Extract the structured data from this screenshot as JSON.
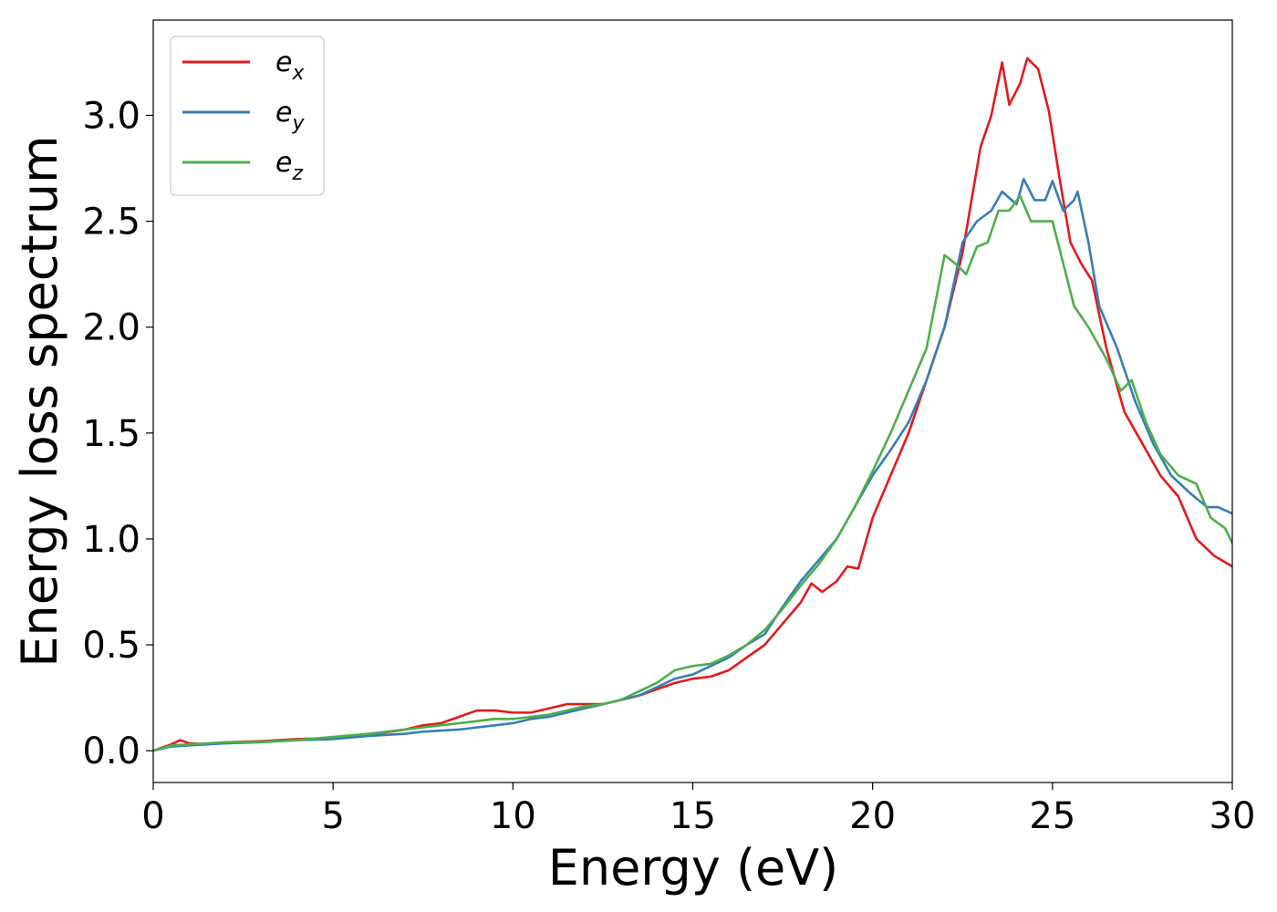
{
  "chart_data": {
    "type": "line",
    "title": "",
    "xlabel": "Energy (eV)",
    "ylabel": "Energy loss spectrum",
    "xlim": [
      0,
      30
    ],
    "ylim": [
      -0.15,
      3.45
    ],
    "xticks": [
      0,
      5,
      10,
      15,
      20,
      25,
      30
    ],
    "xtick_labels": [
      "0",
      "5",
      "10",
      "15",
      "20",
      "25",
      "30"
    ],
    "yticks": [
      0.0,
      0.5,
      1.0,
      1.5,
      2.0,
      2.5,
      3.0
    ],
    "ytick_labels": [
      "0.0",
      "0.5",
      "1.0",
      "1.5",
      "2.0",
      "2.5",
      "3.0"
    ],
    "grid": false,
    "legend_position": "top-left",
    "series": [
      {
        "name": "e_x",
        "label_base": "e",
        "label_sub": "x",
        "color": "#e41a1c",
        "points": [
          [
            0,
            0.0
          ],
          [
            0.5,
            0.03
          ],
          [
            0.75,
            0.05
          ],
          [
            1,
            0.035
          ],
          [
            1.5,
            0.03
          ],
          [
            2,
            0.04
          ],
          [
            3,
            0.045
          ],
          [
            4,
            0.055
          ],
          [
            5,
            0.06
          ],
          [
            6,
            0.075
          ],
          [
            7,
            0.1
          ],
          [
            7.5,
            0.12
          ],
          [
            8,
            0.13
          ],
          [
            8.5,
            0.16
          ],
          [
            9,
            0.19
          ],
          [
            9.5,
            0.19
          ],
          [
            10,
            0.18
          ],
          [
            10.5,
            0.18
          ],
          [
            11,
            0.2
          ],
          [
            11.5,
            0.22
          ],
          [
            12,
            0.22
          ],
          [
            12.5,
            0.22
          ],
          [
            13,
            0.24
          ],
          [
            13.5,
            0.26
          ],
          [
            14,
            0.29
          ],
          [
            14.5,
            0.32
          ],
          [
            15,
            0.34
          ],
          [
            15.5,
            0.35
          ],
          [
            16,
            0.38
          ],
          [
            16.5,
            0.44
          ],
          [
            17,
            0.5
          ],
          [
            17.5,
            0.6
          ],
          [
            18,
            0.7
          ],
          [
            18.3,
            0.79
          ],
          [
            18.6,
            0.75
          ],
          [
            19,
            0.8
          ],
          [
            19.3,
            0.87
          ],
          [
            19.6,
            0.86
          ],
          [
            20,
            1.1
          ],
          [
            20.5,
            1.3
          ],
          [
            21,
            1.5
          ],
          [
            21.5,
            1.75
          ],
          [
            22,
            2.0
          ],
          [
            22.5,
            2.35
          ],
          [
            22.8,
            2.65
          ],
          [
            23,
            2.85
          ],
          [
            23.3,
            3.0
          ],
          [
            23.6,
            3.25
          ],
          [
            23.8,
            3.05
          ],
          [
            24.1,
            3.15
          ],
          [
            24.3,
            3.27
          ],
          [
            24.6,
            3.22
          ],
          [
            24.9,
            3.02
          ],
          [
            25.2,
            2.7
          ],
          [
            25.5,
            2.4
          ],
          [
            25.8,
            2.3
          ],
          [
            26.1,
            2.22
          ],
          [
            26.5,
            1.9
          ],
          [
            27,
            1.6
          ],
          [
            27.5,
            1.45
          ],
          [
            28,
            1.3
          ],
          [
            28.5,
            1.2
          ],
          [
            29,
            1.0
          ],
          [
            29.5,
            0.92
          ],
          [
            30,
            0.87
          ]
        ]
      },
      {
        "name": "e_y",
        "label_base": "e",
        "label_sub": "y",
        "color": "#377eb8",
        "points": [
          [
            0,
            0.0
          ],
          [
            0.5,
            0.02
          ],
          [
            1,
            0.025
          ],
          [
            1.5,
            0.03
          ],
          [
            2,
            0.035
          ],
          [
            3,
            0.04
          ],
          [
            4,
            0.05
          ],
          [
            5,
            0.055
          ],
          [
            6,
            0.07
          ],
          [
            7,
            0.08
          ],
          [
            7.5,
            0.09
          ],
          [
            8,
            0.095
          ],
          [
            8.5,
            0.1
          ],
          [
            9,
            0.11
          ],
          [
            9.5,
            0.12
          ],
          [
            10,
            0.13
          ],
          [
            10.5,
            0.15
          ],
          [
            11,
            0.16
          ],
          [
            11.5,
            0.18
          ],
          [
            12,
            0.2
          ],
          [
            12.5,
            0.22
          ],
          [
            13,
            0.24
          ],
          [
            13.5,
            0.26
          ],
          [
            14,
            0.3
          ],
          [
            14.5,
            0.34
          ],
          [
            15,
            0.36
          ],
          [
            15.5,
            0.4
          ],
          [
            16,
            0.44
          ],
          [
            16.5,
            0.5
          ],
          [
            17,
            0.55
          ],
          [
            17.5,
            0.68
          ],
          [
            18,
            0.8
          ],
          [
            18.5,
            0.9
          ],
          [
            19,
            1.0
          ],
          [
            19.5,
            1.15
          ],
          [
            20,
            1.3
          ],
          [
            20.5,
            1.42
          ],
          [
            21,
            1.55
          ],
          [
            21.5,
            1.75
          ],
          [
            22,
            2.0
          ],
          [
            22.5,
            2.4
          ],
          [
            22.9,
            2.5
          ],
          [
            23.3,
            2.55
          ],
          [
            23.6,
            2.64
          ],
          [
            24,
            2.58
          ],
          [
            24.2,
            2.7
          ],
          [
            24.5,
            2.6
          ],
          [
            24.8,
            2.6
          ],
          [
            25,
            2.69
          ],
          [
            25.3,
            2.55
          ],
          [
            25.6,
            2.6
          ],
          [
            25.7,
            2.64
          ],
          [
            26,
            2.4
          ],
          [
            26.3,
            2.1
          ],
          [
            26.8,
            1.9
          ],
          [
            27.3,
            1.65
          ],
          [
            27.8,
            1.45
          ],
          [
            28.3,
            1.3
          ],
          [
            28.8,
            1.22
          ],
          [
            29.3,
            1.15
          ],
          [
            29.6,
            1.15
          ],
          [
            30,
            1.12
          ]
        ]
      },
      {
        "name": "e_z",
        "label_base": "e",
        "label_sub": "z",
        "color": "#4daf4a",
        "points": [
          [
            0,
            0.0
          ],
          [
            0.5,
            0.025
          ],
          [
            1,
            0.03
          ],
          [
            1.5,
            0.035
          ],
          [
            2,
            0.04
          ],
          [
            3,
            0.042
          ],
          [
            4,
            0.05
          ],
          [
            5,
            0.065
          ],
          [
            6,
            0.08
          ],
          [
            7,
            0.1
          ],
          [
            7.5,
            0.11
          ],
          [
            8,
            0.12
          ],
          [
            8.5,
            0.13
          ],
          [
            9,
            0.14
          ],
          [
            9.5,
            0.15
          ],
          [
            10,
            0.15
          ],
          [
            10.5,
            0.16
          ],
          [
            11,
            0.17
          ],
          [
            11.5,
            0.19
          ],
          [
            12,
            0.21
          ],
          [
            12.5,
            0.22
          ],
          [
            13,
            0.24
          ],
          [
            13.5,
            0.28
          ],
          [
            14,
            0.32
          ],
          [
            14.5,
            0.38
          ],
          [
            15,
            0.4
          ],
          [
            15.5,
            0.41
          ],
          [
            16,
            0.45
          ],
          [
            16.5,
            0.5
          ],
          [
            17,
            0.57
          ],
          [
            17.5,
            0.67
          ],
          [
            18,
            0.78
          ],
          [
            18.5,
            0.88
          ],
          [
            19,
            1.0
          ],
          [
            19.5,
            1.15
          ],
          [
            20,
            1.32
          ],
          [
            20.5,
            1.5
          ],
          [
            21,
            1.7
          ],
          [
            21.5,
            1.9
          ],
          [
            22,
            2.34
          ],
          [
            22.3,
            2.3
          ],
          [
            22.6,
            2.25
          ],
          [
            22.9,
            2.38
          ],
          [
            23.2,
            2.4
          ],
          [
            23.5,
            2.55
          ],
          [
            23.8,
            2.55
          ],
          [
            24.1,
            2.62
          ],
          [
            24.4,
            2.5
          ],
          [
            24.7,
            2.5
          ],
          [
            25,
            2.5
          ],
          [
            25.3,
            2.3
          ],
          [
            25.6,
            2.1
          ],
          [
            26,
            2.0
          ],
          [
            26.5,
            1.85
          ],
          [
            26.9,
            1.7
          ],
          [
            27.2,
            1.75
          ],
          [
            27.6,
            1.55
          ],
          [
            28,
            1.4
          ],
          [
            28.5,
            1.3
          ],
          [
            29,
            1.26
          ],
          [
            29.4,
            1.1
          ],
          [
            29.8,
            1.05
          ],
          [
            30,
            0.98
          ]
        ]
      }
    ]
  }
}
